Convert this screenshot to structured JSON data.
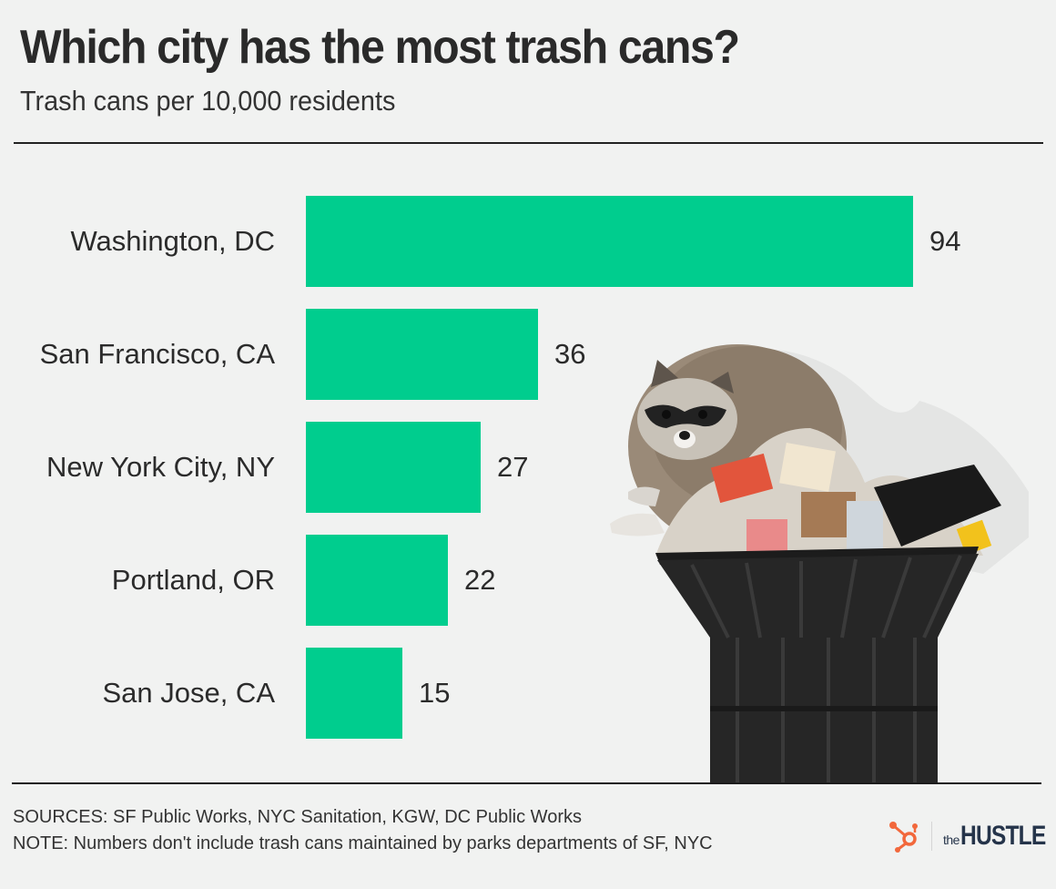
{
  "header": {
    "title": "Which city has the most trash cans?",
    "subtitle": "Trash cans per 10,000 residents"
  },
  "colors": {
    "bar": "#00cd8e",
    "background": "#f1f2f1",
    "text": "#2b2b2b",
    "logo_orange": "#f2683c",
    "logo_navy": "#25344a"
  },
  "chart_data": {
    "type": "bar",
    "orientation": "horizontal",
    "title": "Which city has the most trash cans?",
    "subtitle": "Trash cans per 10,000 residents",
    "categories": [
      "Washington, DC",
      "San Francisco, CA",
      "New York City, NY",
      "Portland, OR",
      "San Jose, CA"
    ],
    "values": [
      94,
      36,
      27,
      22,
      15
    ],
    "value_labels": [
      "94",
      "36",
      "27",
      "22",
      "15"
    ],
    "xlabel": "",
    "ylabel": "",
    "xlim": [
      0,
      94
    ],
    "grid": false,
    "legend": "none",
    "data_labels": true
  },
  "footer": {
    "sources": "SOURCES: SF Public Works, NYC Sanitation, KGW, DC Public Works",
    "note": "NOTE: Numbers don't include trash cans maintained by parks departments of SF, NYC",
    "logo_the": "the",
    "logo_hustle": "HUSTLE"
  },
  "illustration": {
    "description": "raccoon-on-overflowing-trash-can"
  }
}
